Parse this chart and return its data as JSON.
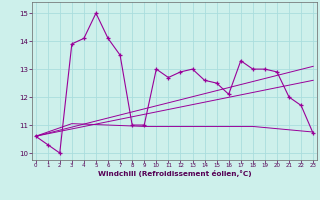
{
  "x": [
    0,
    1,
    2,
    3,
    4,
    5,
    6,
    7,
    8,
    9,
    10,
    11,
    12,
    13,
    14,
    15,
    16,
    17,
    18,
    19,
    20,
    21,
    22,
    23
  ],
  "main_line": [
    10.6,
    10.3,
    10.0,
    13.9,
    14.1,
    15.0,
    14.1,
    13.5,
    11.0,
    11.0,
    13.0,
    12.7,
    12.9,
    13.0,
    12.6,
    12.5,
    12.1,
    13.3,
    13.0,
    13.0,
    12.9,
    12.0,
    11.7,
    10.7
  ],
  "trend1_x": [
    0,
    23
  ],
  "trend1_y": [
    10.6,
    13.1
  ],
  "trend2_x": [
    0,
    23
  ],
  "trend2_y": [
    10.6,
    12.6
  ],
  "flat_x": [
    0,
    3,
    9,
    14,
    18,
    23
  ],
  "flat_y": [
    10.6,
    11.05,
    10.95,
    10.95,
    10.95,
    10.75
  ],
  "bg_color": "#cdf0eb",
  "grid_color": "#aadddd",
  "line_color": "#990099",
  "xlabel": "Windchill (Refroidissement éolien,°C)",
  "yticks": [
    10,
    11,
    12,
    13,
    14,
    15
  ],
  "xticks": [
    0,
    1,
    2,
    3,
    4,
    5,
    6,
    7,
    8,
    9,
    10,
    11,
    12,
    13,
    14,
    15,
    16,
    17,
    18,
    19,
    20,
    21,
    22,
    23
  ],
  "xlim": [
    -0.3,
    23.3
  ],
  "ylim": [
    9.75,
    15.4
  ]
}
